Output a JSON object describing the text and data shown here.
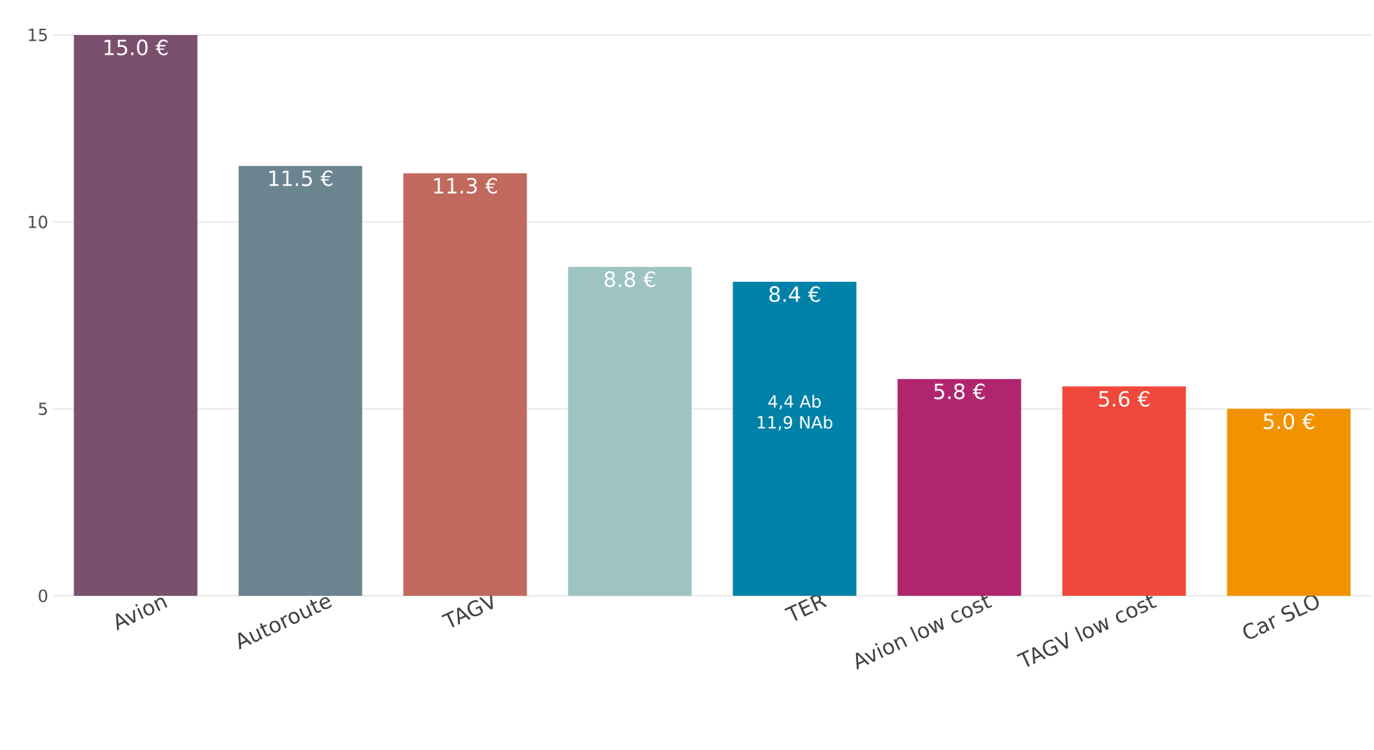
{
  "chart_data": {
    "type": "bar",
    "categories": [
      "Avion",
      "Autoroute",
      "TAGV",
      null,
      "TER",
      "Avion low cost",
      "TAGV low cost",
      "Car SLO"
    ],
    "values": [
      15.0,
      11.5,
      11.3,
      8.8,
      8.4,
      5.8,
      5.6,
      5.0
    ],
    "colors": [
      "#7b4f6e",
      "#6a8490",
      "#c0695c",
      "#9ec3c3",
      "#0082a8",
      "#b0256e",
      "#f0483a",
      "#f29200"
    ],
    "value_labels": [
      "15.0 €",
      "11.5 €",
      "11.3 €",
      "8.8 €",
      "8.4 €",
      "5.8 €",
      "5.6 €",
      "5.0 €"
    ],
    "annotations": [
      "4,4 Ab",
      "11,9 NAb"
    ],
    "ylim": [
      0,
      15
    ],
    "yticks": [
      0,
      5,
      10,
      15
    ],
    "grid": "y"
  }
}
